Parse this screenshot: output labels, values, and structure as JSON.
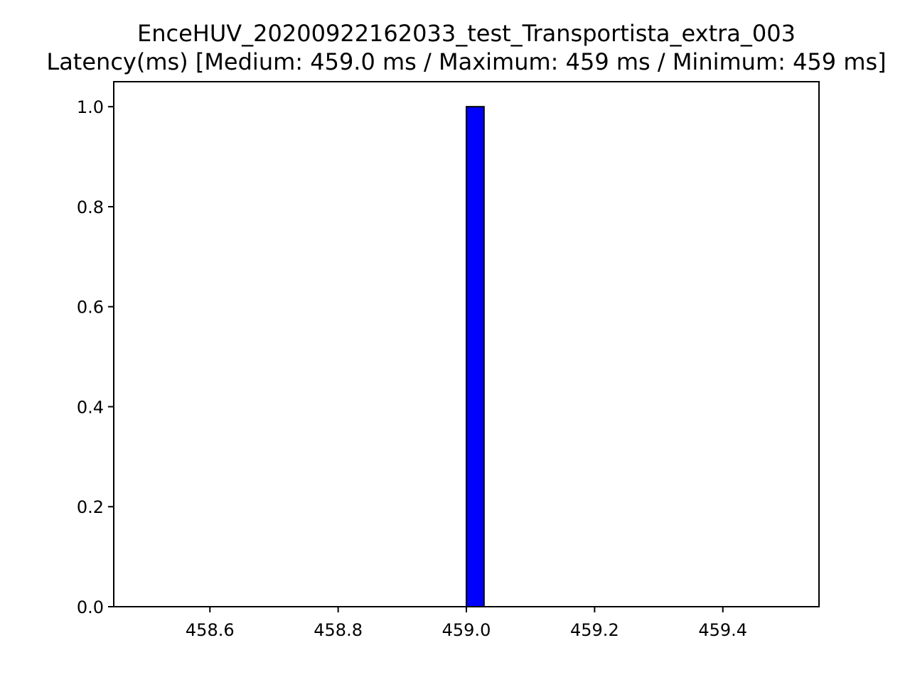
{
  "chart_data": {
    "type": "bar",
    "title": "EnceHUV_20200922162033_test_Transportista_extra_003",
    "subtitle": "Latency(ms) [Medium: 459.0 ms / Maximum: 459 ms / Minimum: 459 ms]",
    "xlabel": "",
    "ylabel": "",
    "xlim": [
      458.45,
      459.55
    ],
    "ylim": [
      0,
      1.05
    ],
    "x_ticks": [
      458.6,
      458.8,
      459.0,
      459.2,
      459.4
    ],
    "x_tick_labels": [
      "458.6",
      "458.8",
      "459.0",
      "459.2",
      "459.4"
    ],
    "y_ticks": [
      0.0,
      0.2,
      0.4,
      0.6,
      0.8,
      1.0
    ],
    "y_tick_labels": [
      "0.0",
      "0.2",
      "0.4",
      "0.6",
      "0.8",
      "1.0"
    ],
    "bins": [
      {
        "x_start": 459.0,
        "x_end": 459.0275,
        "value": 1.0
      }
    ],
    "bar_color": "#0000ff",
    "bar_edge_color": "#000000",
    "grid": false
  }
}
